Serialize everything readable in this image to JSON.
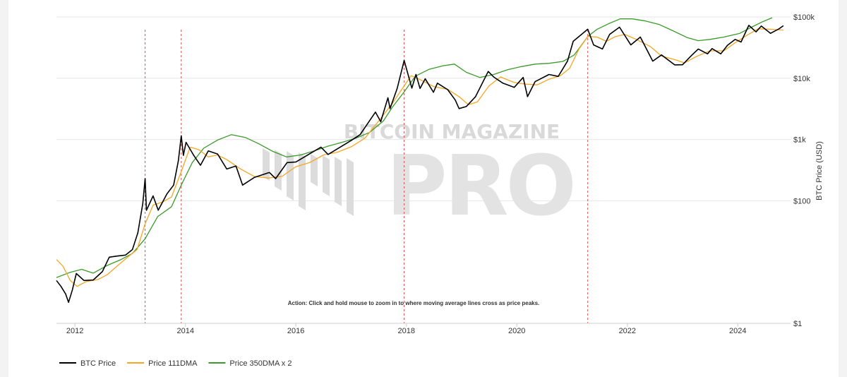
{
  "chart_data": {
    "type": "line",
    "y_scale": "log",
    "ylabel": "BTC Price (USD)",
    "ylim": [
      1,
      100000
    ],
    "xlim": [
      "2011-09-01",
      "2024-12-15"
    ],
    "x_tick_labels": [
      "2012",
      "2014",
      "2016",
      "2018",
      "2020",
      "2022",
      "2024"
    ],
    "y_tick_labels": [
      "$1",
      "$100",
      "$1k",
      "$10k",
      "$100k"
    ],
    "y_tick_values": [
      1,
      100,
      1000,
      10000,
      100000
    ],
    "grid": true,
    "legend_position": "bottom-left",
    "annotation": "Action: Click and hold mouse to zoom in to where moving average lines cross as price peaks.",
    "watermark": {
      "top": "BITCOIN MAGAZINE",
      "main": "PRO"
    },
    "peak_markers": [
      "2013-04-09",
      "2013-12-04",
      "2017-12-17",
      "2021-04-14"
    ],
    "series": [
      {
        "name": "BTC Price",
        "color": "#000000",
        "points": [
          [
            "2011-09-01",
            5.0
          ],
          [
            "2011-10-01",
            4.0
          ],
          [
            "2011-11-01",
            3.0
          ],
          [
            "2011-11-20",
            2.2
          ],
          [
            "2011-12-15",
            3.5
          ],
          [
            "2012-01-10",
            6.5
          ],
          [
            "2012-03-01",
            5.0
          ],
          [
            "2012-05-01",
            5.1
          ],
          [
            "2012-07-01",
            7.0
          ],
          [
            "2012-08-15",
            12.0
          ],
          [
            "2012-10-01",
            12.5
          ],
          [
            "2012-12-01",
            13.0
          ],
          [
            "2013-01-15",
            16.0
          ],
          [
            "2013-02-20",
            30.0
          ],
          [
            "2013-03-25",
            90.0
          ],
          [
            "2013-04-09",
            230.0
          ],
          [
            "2013-04-18",
            70.0
          ],
          [
            "2013-06-01",
            120.0
          ],
          [
            "2013-07-05",
            70.0
          ],
          [
            "2013-09-01",
            130.0
          ],
          [
            "2013-10-15",
            180.0
          ],
          [
            "2013-11-15",
            450.0
          ],
          [
            "2013-12-04",
            1150.0
          ],
          [
            "2013-12-18",
            550.0
          ],
          [
            "2014-01-05",
            900.0
          ],
          [
            "2014-02-25",
            550.0
          ],
          [
            "2014-04-10",
            380.0
          ],
          [
            "2014-06-01",
            650.0
          ],
          [
            "2014-08-01",
            580.0
          ],
          [
            "2014-10-01",
            330.0
          ],
          [
            "2014-12-01",
            370.0
          ],
          [
            "2015-01-14",
            180.0
          ],
          [
            "2015-04-01",
            240.0
          ],
          [
            "2015-07-10",
            290.0
          ],
          [
            "2015-08-20",
            230.0
          ],
          [
            "2015-11-04",
            420.0
          ],
          [
            "2016-01-01",
            430.0
          ],
          [
            "2016-06-15",
            750.0
          ],
          [
            "2016-08-01",
            570.0
          ],
          [
            "2016-12-31",
            960.0
          ],
          [
            "2017-03-01",
            1200.0
          ],
          [
            "2017-06-10",
            2800.0
          ],
          [
            "2017-07-15",
            1950.0
          ],
          [
            "2017-09-01",
            4800.0
          ],
          [
            "2017-09-15",
            3200.0
          ],
          [
            "2017-11-01",
            6800.0
          ],
          [
            "2017-12-17",
            19500.0
          ],
          [
            "2018-02-06",
            6900.0
          ],
          [
            "2018-03-05",
            11500.0
          ],
          [
            "2018-04-01",
            6800.0
          ],
          [
            "2018-05-05",
            9800.0
          ],
          [
            "2018-06-29",
            5900.0
          ],
          [
            "2018-07-25",
            8300.0
          ],
          [
            "2018-10-01",
            6500.0
          ],
          [
            "2018-11-20",
            4400.0
          ],
          [
            "2018-12-15",
            3200.0
          ],
          [
            "2019-02-01",
            3450.0
          ],
          [
            "2019-04-03",
            5000.0
          ],
          [
            "2019-06-26",
            12900.0
          ],
          [
            "2019-08-01",
            10500.0
          ],
          [
            "2019-10-01",
            8300.0
          ],
          [
            "2019-12-15",
            7100.0
          ],
          [
            "2020-02-12",
            10300.0
          ],
          [
            "2020-03-12",
            5000.0
          ],
          [
            "2020-05-01",
            8800.0
          ],
          [
            "2020-08-01",
            11500.0
          ],
          [
            "2020-10-01",
            10700.0
          ],
          [
            "2020-12-01",
            19000.0
          ],
          [
            "2021-01-08",
            40000.0
          ],
          [
            "2021-04-14",
            63000.0
          ],
          [
            "2021-05-23",
            35000.0
          ],
          [
            "2021-07-20",
            30000.0
          ],
          [
            "2021-09-06",
            52000.0
          ],
          [
            "2021-11-10",
            68000.0
          ],
          [
            "2022-01-24",
            35000.0
          ],
          [
            "2022-03-28",
            47000.0
          ],
          [
            "2022-06-18",
            19000.0
          ],
          [
            "2022-08-15",
            24000.0
          ],
          [
            "2022-11-10",
            16500.0
          ],
          [
            "2023-01-01",
            16600.0
          ],
          [
            "2023-03-01",
            23500.0
          ],
          [
            "2023-04-15",
            30000.0
          ],
          [
            "2023-06-15",
            25000.0
          ],
          [
            "2023-07-15",
            30500.0
          ],
          [
            "2023-09-11",
            25000.0
          ],
          [
            "2023-10-25",
            34500.0
          ],
          [
            "2023-12-15",
            43000.0
          ],
          [
            "2024-01-23",
            39000.0
          ],
          [
            "2024-03-14",
            73000.0
          ],
          [
            "2024-05-01",
            57000.0
          ],
          [
            "2024-06-05",
            71000.0
          ],
          [
            "2024-08-05",
            54000.0
          ],
          [
            "2024-09-30",
            64000.0
          ],
          [
            "2024-10-29",
            72000.0
          ]
        ]
      },
      {
        "name": "Price 111DMA",
        "color": "#f5a623",
        "points": [
          [
            "2011-09-01",
            11.0
          ],
          [
            "2011-10-15",
            8.5
          ],
          [
            "2011-12-01",
            5.0
          ],
          [
            "2012-01-15",
            4.0
          ],
          [
            "2012-03-15",
            4.8
          ],
          [
            "2012-06-01",
            5.2
          ],
          [
            "2012-08-01",
            6.2
          ],
          [
            "2012-10-15",
            9.0
          ],
          [
            "2012-12-15",
            12.0
          ],
          [
            "2013-02-15",
            16.0
          ],
          [
            "2013-04-09",
            42.0
          ],
          [
            "2013-06-01",
            85.0
          ],
          [
            "2013-08-01",
            95.0
          ],
          [
            "2013-10-01",
            115.0
          ],
          [
            "2013-12-04",
            300.0
          ],
          [
            "2014-02-01",
            750.0
          ],
          [
            "2014-04-01",
            680.0
          ],
          [
            "2014-06-01",
            520.0
          ],
          [
            "2014-08-01",
            560.0
          ],
          [
            "2014-10-01",
            470.0
          ],
          [
            "2015-01-01",
            330.0
          ],
          [
            "2015-04-01",
            250.0
          ],
          [
            "2015-07-01",
            235.0
          ],
          [
            "2015-10-01",
            250.0
          ],
          [
            "2016-01-01",
            360.0
          ],
          [
            "2016-04-01",
            420.0
          ],
          [
            "2016-07-01",
            560.0
          ],
          [
            "2016-10-01",
            620.0
          ],
          [
            "2017-01-01",
            760.0
          ],
          [
            "2017-04-01",
            1050.0
          ],
          [
            "2017-07-01",
            2000.0
          ],
          [
            "2017-10-01",
            3900.0
          ],
          [
            "2017-12-17",
            7500.0
          ],
          [
            "2018-02-01",
            11000.0
          ],
          [
            "2018-04-01",
            9500.0
          ],
          [
            "2018-07-01",
            7300.0
          ],
          [
            "2018-10-01",
            6600.0
          ],
          [
            "2018-12-15",
            5000.0
          ],
          [
            "2019-02-15",
            3700.0
          ],
          [
            "2019-04-15",
            4100.0
          ],
          [
            "2019-07-01",
            7500.0
          ],
          [
            "2019-09-15",
            10500.0
          ],
          [
            "2019-12-15",
            8500.0
          ],
          [
            "2020-03-01",
            8000.0
          ],
          [
            "2020-05-15",
            7800.0
          ],
          [
            "2020-08-01",
            9600.0
          ],
          [
            "2020-10-15",
            11000.0
          ],
          [
            "2020-12-15",
            14500.0
          ],
          [
            "2021-02-15",
            30000.0
          ],
          [
            "2021-04-14",
            48000.0
          ],
          [
            "2021-06-15",
            47000.0
          ],
          [
            "2021-08-15",
            40000.0
          ],
          [
            "2021-10-15",
            48000.0
          ],
          [
            "2021-12-15",
            52000.0
          ],
          [
            "2022-03-01",
            43000.0
          ],
          [
            "2022-06-01",
            33000.0
          ],
          [
            "2022-08-15",
            23000.0
          ],
          [
            "2022-11-15",
            20000.0
          ],
          [
            "2023-01-15",
            17800.0
          ],
          [
            "2023-04-01",
            22500.0
          ],
          [
            "2023-07-01",
            28000.0
          ],
          [
            "2023-10-01",
            28000.0
          ],
          [
            "2023-12-15",
            38000.0
          ],
          [
            "2024-03-01",
            50000.0
          ],
          [
            "2024-05-15",
            64000.0
          ],
          [
            "2024-08-01",
            63000.0
          ],
          [
            "2024-10-29",
            61000.0
          ]
        ]
      },
      {
        "name": "Price 350DMA x 2",
        "color": "#3a9a2a",
        "points": [
          [
            "2011-09-01",
            5.6
          ],
          [
            "2011-12-01",
            6.8
          ],
          [
            "2012-02-15",
            7.6
          ],
          [
            "2012-05-01",
            6.6
          ],
          [
            "2012-08-01",
            8.8
          ],
          [
            "2012-11-01",
            11.0
          ],
          [
            "2013-01-15",
            13.8
          ],
          [
            "2013-04-09",
            24.0
          ],
          [
            "2013-07-01",
            55.0
          ],
          [
            "2013-10-01",
            80.0
          ],
          [
            "2013-12-04",
            180.0
          ],
          [
            "2014-02-15",
            420.0
          ],
          [
            "2014-05-01",
            720.0
          ],
          [
            "2014-08-01",
            980.0
          ],
          [
            "2014-11-01",
            1200.0
          ],
          [
            "2015-02-01",
            1080.0
          ],
          [
            "2015-05-01",
            850.0
          ],
          [
            "2015-08-01",
            640.0
          ],
          [
            "2015-11-01",
            520.0
          ],
          [
            "2016-02-01",
            560.0
          ],
          [
            "2016-05-01",
            650.0
          ],
          [
            "2016-08-01",
            780.0
          ],
          [
            "2016-11-01",
            900.0
          ],
          [
            "2017-02-01",
            1050.0
          ],
          [
            "2017-05-01",
            1300.0
          ],
          [
            "2017-08-01",
            2000.0
          ],
          [
            "2017-10-01",
            3400.0
          ],
          [
            "2017-12-17",
            6000.0
          ],
          [
            "2018-03-01",
            10800.0
          ],
          [
            "2018-06-01",
            14000.0
          ],
          [
            "2018-09-01",
            16000.0
          ],
          [
            "2018-11-15",
            17000.0
          ],
          [
            "2019-02-01",
            12500.0
          ],
          [
            "2019-05-01",
            10300.0
          ],
          [
            "2019-08-01",
            11500.0
          ],
          [
            "2019-11-01",
            13800.0
          ],
          [
            "2020-02-01",
            15500.0
          ],
          [
            "2020-05-01",
            17000.0
          ],
          [
            "2020-08-01",
            17500.0
          ],
          [
            "2020-11-01",
            18800.0
          ],
          [
            "2021-01-15",
            24000.0
          ],
          [
            "2021-04-14",
            48000.0
          ],
          [
            "2021-06-15",
            63000.0
          ],
          [
            "2021-09-01",
            78000.0
          ],
          [
            "2021-11-15",
            93000.0
          ],
          [
            "2022-02-01",
            93000.0
          ],
          [
            "2022-05-01",
            86000.0
          ],
          [
            "2022-08-01",
            75000.0
          ],
          [
            "2022-11-01",
            59000.0
          ],
          [
            "2023-02-01",
            46000.0
          ],
          [
            "2023-04-15",
            41000.0
          ],
          [
            "2023-07-01",
            43000.0
          ],
          [
            "2023-10-01",
            47000.0
          ],
          [
            "2024-01-15",
            54000.0
          ],
          [
            "2024-04-01",
            68000.0
          ],
          [
            "2024-06-15",
            84000.0
          ],
          [
            "2024-08-15",
            97000.0
          ]
        ]
      }
    ]
  }
}
